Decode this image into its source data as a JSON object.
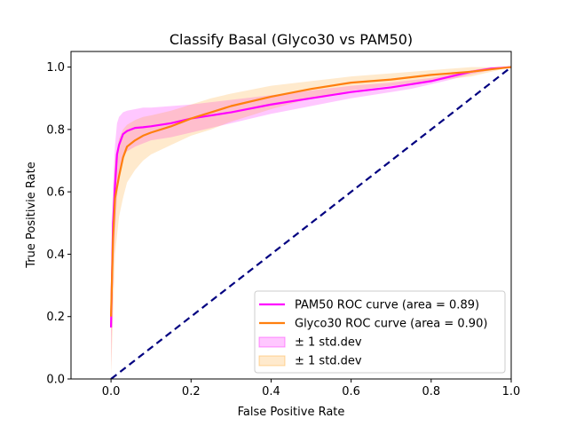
{
  "chart_data": {
    "type": "line",
    "title": "Classify Basal (Glyco30 vs PAM50)",
    "xlabel": "False Positive Rate",
    "ylabel": "True Positivie Rate",
    "xlim": [
      -0.1,
      1.0
    ],
    "ylim": [
      0.0,
      1.05
    ],
    "xticks": [
      0.0,
      0.2,
      0.4,
      0.6,
      0.8,
      1.0
    ],
    "xtick_labels": [
      "0.0",
      "0.2",
      "0.4",
      "0.6",
      "0.8",
      "1.0"
    ],
    "yticks": [
      0.0,
      0.2,
      0.4,
      0.6,
      0.8,
      1.0
    ],
    "ytick_labels": [
      "0.0",
      "0.2",
      "0.4",
      "0.6",
      "0.8",
      "1.0"
    ],
    "grid": false,
    "legend_position": "lower-right",
    "series": [
      {
        "name": "PAM50 ROC curve (area = 0.89)",
        "color": "#ff00ff",
        "x": [
          0.0,
          0.002,
          0.005,
          0.01,
          0.015,
          0.02,
          0.03,
          0.04,
          0.06,
          0.08,
          0.1,
          0.15,
          0.2,
          0.3,
          0.4,
          0.5,
          0.6,
          0.7,
          0.75,
          0.8,
          0.85,
          0.9,
          0.95,
          1.0
        ],
        "y": [
          0.165,
          0.3,
          0.5,
          0.62,
          0.72,
          0.75,
          0.785,
          0.795,
          0.805,
          0.807,
          0.81,
          0.82,
          0.835,
          0.855,
          0.88,
          0.9,
          0.92,
          0.935,
          0.945,
          0.955,
          0.97,
          0.985,
          0.995,
          1.0
        ],
        "band_lower": [
          0.03,
          0.15,
          0.33,
          0.47,
          0.58,
          0.66,
          0.71,
          0.73,
          0.745,
          0.755,
          0.765,
          0.775,
          0.79,
          0.82,
          0.85,
          0.875,
          0.9,
          0.92,
          0.93,
          0.945,
          0.96,
          0.977,
          0.99,
          1.0
        ],
        "band_upper": [
          0.2,
          0.45,
          0.62,
          0.75,
          0.82,
          0.84,
          0.855,
          0.86,
          0.865,
          0.87,
          0.87,
          0.875,
          0.88,
          0.895,
          0.91,
          0.925,
          0.94,
          0.95,
          0.958,
          0.965,
          0.977,
          0.99,
          1.0,
          1.0
        ],
        "band_label": "± 1 std.dev",
        "band_color": "#ff00ff"
      },
      {
        "name": "Glyco30 ROC curve (area = 0.90)",
        "color": "#ff7f0e",
        "x": [
          0.0,
          0.005,
          0.01,
          0.02,
          0.03,
          0.04,
          0.06,
          0.08,
          0.1,
          0.15,
          0.2,
          0.25,
          0.3,
          0.4,
          0.5,
          0.6,
          0.7,
          0.8,
          0.9,
          0.95,
          1.0
        ],
        "y": [
          0.2,
          0.45,
          0.58,
          0.65,
          0.71,
          0.745,
          0.765,
          0.78,
          0.79,
          0.81,
          0.835,
          0.855,
          0.875,
          0.905,
          0.93,
          0.95,
          0.96,
          0.975,
          0.985,
          0.993,
          1.0
        ],
        "band_lower": [
          0.01,
          0.2,
          0.4,
          0.52,
          0.58,
          0.63,
          0.67,
          0.7,
          0.72,
          0.75,
          0.78,
          0.8,
          0.825,
          0.865,
          0.9,
          0.925,
          0.94,
          0.955,
          0.97,
          0.985,
          1.0
        ],
        "band_upper": [
          0.25,
          0.55,
          0.7,
          0.77,
          0.8,
          0.815,
          0.83,
          0.84,
          0.845,
          0.86,
          0.88,
          0.9,
          0.915,
          0.94,
          0.955,
          0.97,
          0.98,
          0.99,
          1.0,
          1.0,
          1.0
        ],
        "band_label": "± 1 std.dev",
        "band_color": "#ff9f1a"
      }
    ],
    "reference_line": {
      "x": [
        0.0,
        1.0
      ],
      "y": [
        0.0,
        1.0
      ],
      "color": "#000080",
      "style": "dashed"
    }
  }
}
